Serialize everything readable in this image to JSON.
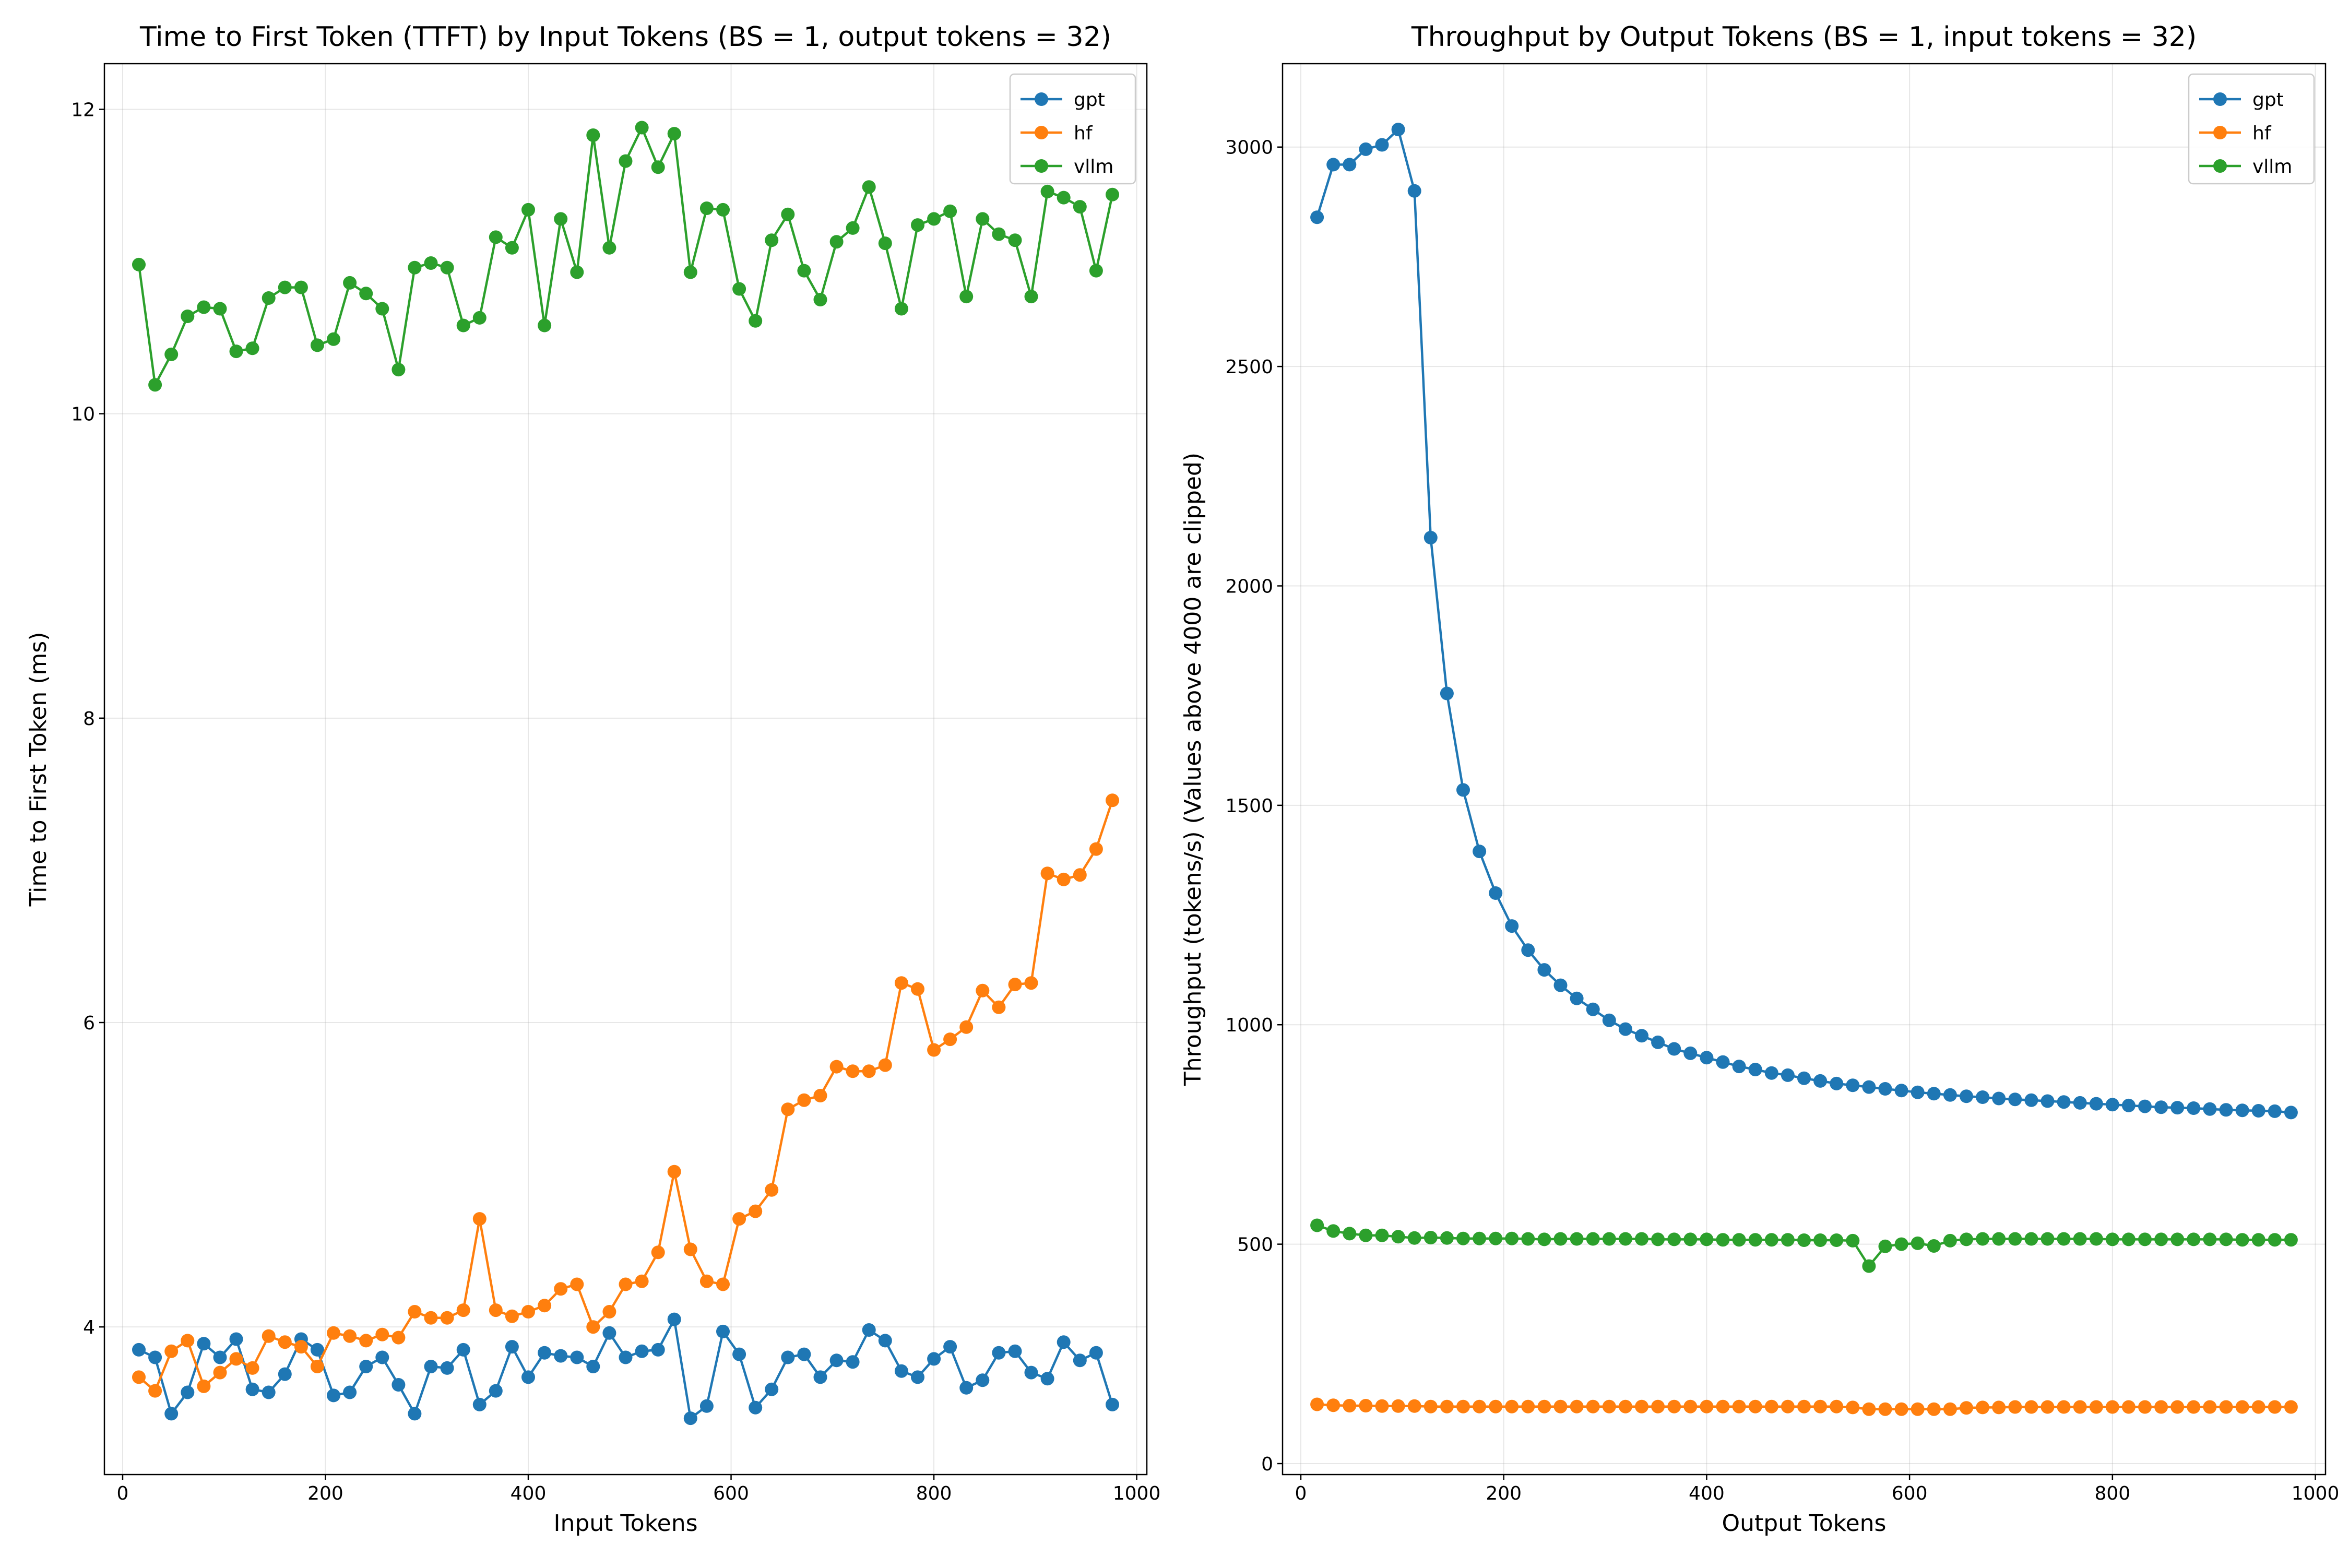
{
  "chart_data": [
    {
      "type": "line",
      "title": "Time to First Token (TTFT) by Input Tokens (BS = 1, output tokens = 32)",
      "xlabel": "Input Tokens",
      "ylabel": "Time to First Token (ms)",
      "xlim": [
        -18,
        1010
      ],
      "ylim": [
        3.03,
        12.3
      ],
      "xticks": [
        0,
        200,
        400,
        600,
        800,
        1000
      ],
      "yticks": [
        4,
        6,
        8,
        10,
        12
      ],
      "grid": true,
      "legend": "top-right",
      "x": [
        16,
        32,
        48,
        64,
        80,
        96,
        112,
        128,
        144,
        160,
        176,
        192,
        208,
        224,
        240,
        256,
        272,
        288,
        304,
        320,
        336,
        352,
        368,
        384,
        400,
        416,
        432,
        448,
        464,
        480,
        496,
        512,
        528,
        544,
        560,
        576,
        592,
        608,
        624,
        640,
        656,
        672,
        688,
        704,
        720,
        736,
        752,
        768,
        784,
        800,
        816,
        832,
        848,
        864,
        880,
        896,
        912,
        928,
        944,
        960,
        976
      ],
      "series": [
        {
          "name": "gpt",
          "color": "#1f77b4",
          "values": [
            3.85,
            3.8,
            3.43,
            3.57,
            3.89,
            3.8,
            3.92,
            3.59,
            3.57,
            3.69,
            3.92,
            3.85,
            3.55,
            3.57,
            3.74,
            3.8,
            3.62,
            3.43,
            3.74,
            3.73,
            3.85,
            3.49,
            3.58,
            3.87,
            3.67,
            3.83,
            3.81,
            3.8,
            3.74,
            3.96,
            3.8,
            3.84,
            3.85,
            4.05,
            3.4,
            3.48,
            3.97,
            3.82,
            3.47,
            3.59,
            3.8,
            3.82,
            3.67,
            3.78,
            3.77,
            3.98,
            3.91,
            3.71,
            3.67,
            3.79,
            3.87,
            3.6,
            3.65,
            3.83,
            3.84,
            3.7,
            3.66,
            3.9,
            3.78,
            3.83,
            3.49
          ]
        },
        {
          "name": "hf",
          "color": "#ff7f0e",
          "values": [
            3.67,
            3.58,
            3.84,
            3.91,
            3.61,
            3.7,
            3.79,
            3.73,
            3.94,
            3.9,
            3.87,
            3.74,
            3.96,
            3.94,
            3.91,
            3.95,
            3.93,
            4.1,
            4.06,
            4.06,
            4.11,
            4.71,
            4.11,
            4.07,
            4.1,
            4.14,
            4.25,
            4.28,
            4.0,
            4.1,
            4.28,
            4.3,
            4.49,
            5.02,
            4.51,
            4.3,
            4.28,
            4.71,
            4.76,
            4.9,
            5.43,
            5.49,
            5.52,
            5.71,
            5.68,
            5.68,
            5.72,
            6.26,
            6.22,
            5.82,
            5.89,
            5.97,
            6.21,
            6.1,
            6.25,
            6.26,
            6.98,
            6.94,
            6.97,
            7.14,
            7.46
          ]
        },
        {
          "name": "vllm",
          "color": "#2ca02c",
          "values": [
            10.98,
            10.19,
            10.39,
            10.64,
            10.7,
            10.69,
            10.41,
            10.43,
            10.76,
            10.83,
            10.83,
            10.45,
            10.49,
            10.86,
            10.79,
            10.69,
            10.29,
            10.96,
            10.99,
            10.96,
            10.58,
            10.63,
            11.16,
            11.09,
            11.34,
            10.58,
            11.28,
            10.93,
            11.83,
            11.09,
            11.66,
            11.88,
            11.62,
            11.84,
            10.93,
            11.35,
            11.34,
            10.82,
            10.61,
            11.14,
            11.31,
            10.94,
            10.75,
            11.13,
            11.22,
            11.49,
            11.12,
            10.69,
            11.24,
            11.28,
            11.33,
            10.77,
            11.28,
            11.18,
            11.14,
            10.77,
            11.46,
            11.42,
            11.36,
            10.94,
            11.44
          ]
        }
      ]
    },
    {
      "type": "line",
      "title": "Throughput by Output Tokens (BS = 1, input tokens = 32)",
      "xlabel": "Output Tokens",
      "ylabel": "Throughput (tokens/s) (Values above 4000 are clipped)",
      "xlim": [
        -18,
        1010
      ],
      "ylim": [
        -25,
        3190
      ],
      "xticks": [
        0,
        200,
        400,
        600,
        800,
        1000
      ],
      "yticks": [
        0,
        500,
        1000,
        1500,
        2000,
        2500,
        3000
      ],
      "grid": true,
      "legend": "top-right",
      "x": [
        16,
        32,
        48,
        64,
        80,
        96,
        112,
        128,
        144,
        160,
        176,
        192,
        208,
        224,
        240,
        256,
        272,
        288,
        304,
        320,
        336,
        352,
        368,
        384,
        400,
        416,
        432,
        448,
        464,
        480,
        496,
        512,
        528,
        544,
        560,
        576,
        592,
        608,
        624,
        640,
        656,
        672,
        688,
        704,
        720,
        736,
        752,
        768,
        784,
        800,
        816,
        832,
        848,
        864,
        880,
        896,
        912,
        928,
        944,
        960,
        976
      ],
      "series": [
        {
          "name": "gpt",
          "color": "#1f77b4",
          "values": [
            2840,
            2960,
            2960,
            2995,
            3005,
            3040,
            2900,
            2110,
            1755,
            1535,
            1395,
            1300,
            1225,
            1170,
            1125,
            1090,
            1060,
            1035,
            1010,
            990,
            975,
            960,
            945,
            935,
            925,
            915,
            905,
            898,
            890,
            885,
            878,
            872,
            866,
            862,
            858,
            854,
            850,
            846,
            843,
            840,
            837,
            835,
            832,
            830,
            828,
            826,
            824,
            822,
            820,
            818,
            816,
            814,
            812,
            811,
            810,
            808,
            806,
            805,
            804,
            803,
            800
          ]
        },
        {
          "name": "hf",
          "color": "#ff7f0e",
          "values": [
            135,
            133,
            132,
            132,
            131,
            131,
            131,
            130,
            130,
            130,
            130,
            130,
            130,
            130,
            130,
            130,
            130,
            130,
            130,
            130,
            130,
            130,
            130,
            130,
            130,
            130,
            130,
            130,
            130,
            130,
            130,
            130,
            130,
            128,
            124,
            124,
            124,
            124,
            124,
            124,
            127,
            128,
            128,
            129,
            129,
            129,
            129,
            129,
            129,
            129,
            129,
            129,
            129,
            129,
            129,
            129,
            129,
            129,
            129,
            129,
            129
          ]
        },
        {
          "name": "vllm",
          "color": "#2ca02c",
          "values": [
            543,
            530,
            524,
            520,
            520,
            517,
            514,
            515,
            514,
            513,
            513,
            513,
            513,
            512,
            511,
            512,
            512,
            512,
            512,
            512,
            512,
            511,
            511,
            511,
            511,
            510,
            510,
            510,
            510,
            510,
            509,
            509,
            509,
            508,
            450,
            495,
            500,
            502,
            496,
            508,
            511,
            512,
            512,
            512,
            512,
            512,
            512,
            512,
            512,
            511,
            511,
            511,
            511,
            511,
            511,
            511,
            511,
            510,
            510,
            510,
            510
          ]
        }
      ]
    }
  ]
}
